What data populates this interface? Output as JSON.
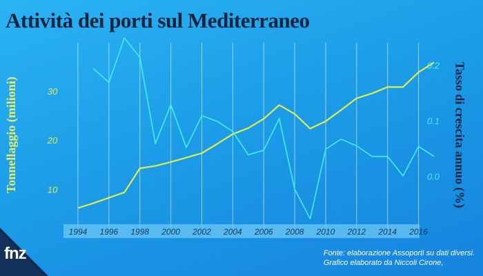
{
  "title": "Attività dei porti sul Mediterraneo",
  "source_line1": "Fonte: elaborazione Assoporti su dati diversi.",
  "source_line2": "Grafico elaborato da Niccoli Cirone,",
  "logo_text": "fnz",
  "colors": {
    "tonnage": "#e1ec4a",
    "growth": "#3ff0f0",
    "title": "#0d2540",
    "axis_band": "#6cc8f5"
  },
  "chart_data": {
    "type": "line",
    "title": "Attività dei porti sul Mediterraneo",
    "xlabel": "",
    "x_ticks": [
      "1994",
      "1996",
      "1998",
      "2000",
      "2002",
      "2004",
      "2006",
      "2008",
      "2010",
      "2012",
      "2014",
      "2016"
    ],
    "xlim": [
      1994,
      2017
    ],
    "y_left": {
      "label": "Tonnellaggio (milioni)",
      "ticks": [
        "10",
        "20",
        "30"
      ],
      "lim": [
        3,
        41
      ]
    },
    "y_right": {
      "label": "Tasso di crescita annuo (%)",
      "ticks": [
        "0.0",
        "0.1",
        "0.2"
      ],
      "lim": [
        -0.085,
        0.25
      ]
    },
    "grid": true,
    "series": [
      {
        "axis": "left",
        "x": [
          1994,
          1995,
          1996,
          1997,
          1998,
          1999,
          2000,
          2001,
          2002,
          2003,
          2004,
          2005,
          2006,
          2007,
          2008,
          2009,
          2010,
          2011,
          2012,
          2013,
          2014,
          2015,
          2016,
          2017
        ],
        "values": [
          6.3,
          7.3,
          8.4,
          9.5,
          14.4,
          14.9,
          15.7,
          16.6,
          17.5,
          19.4,
          21.4,
          22.6,
          24.5,
          27.3,
          25.5,
          22.5,
          24.0,
          26.3,
          28.7,
          29.7,
          31.0,
          31.0,
          34.0,
          36.0
        ]
      },
      {
        "axis": "right",
        "x": [
          1995,
          1996,
          1997,
          1998,
          1999,
          2000,
          2001,
          2002,
          2003,
          2004,
          2005,
          2006,
          2007,
          2008,
          2009,
          2010,
          2011,
          2012,
          2013,
          2014,
          2015,
          2016,
          2017
        ],
        "values": [
          0.195,
          0.17,
          0.25,
          0.215,
          0.06,
          0.13,
          0.053,
          0.11,
          0.1,
          0.082,
          0.04,
          0.048,
          0.105,
          -0.022,
          -0.075,
          0.05,
          0.068,
          0.056,
          0.037,
          0.037,
          0.002,
          0.055,
          0.037
        ]
      }
    ]
  }
}
